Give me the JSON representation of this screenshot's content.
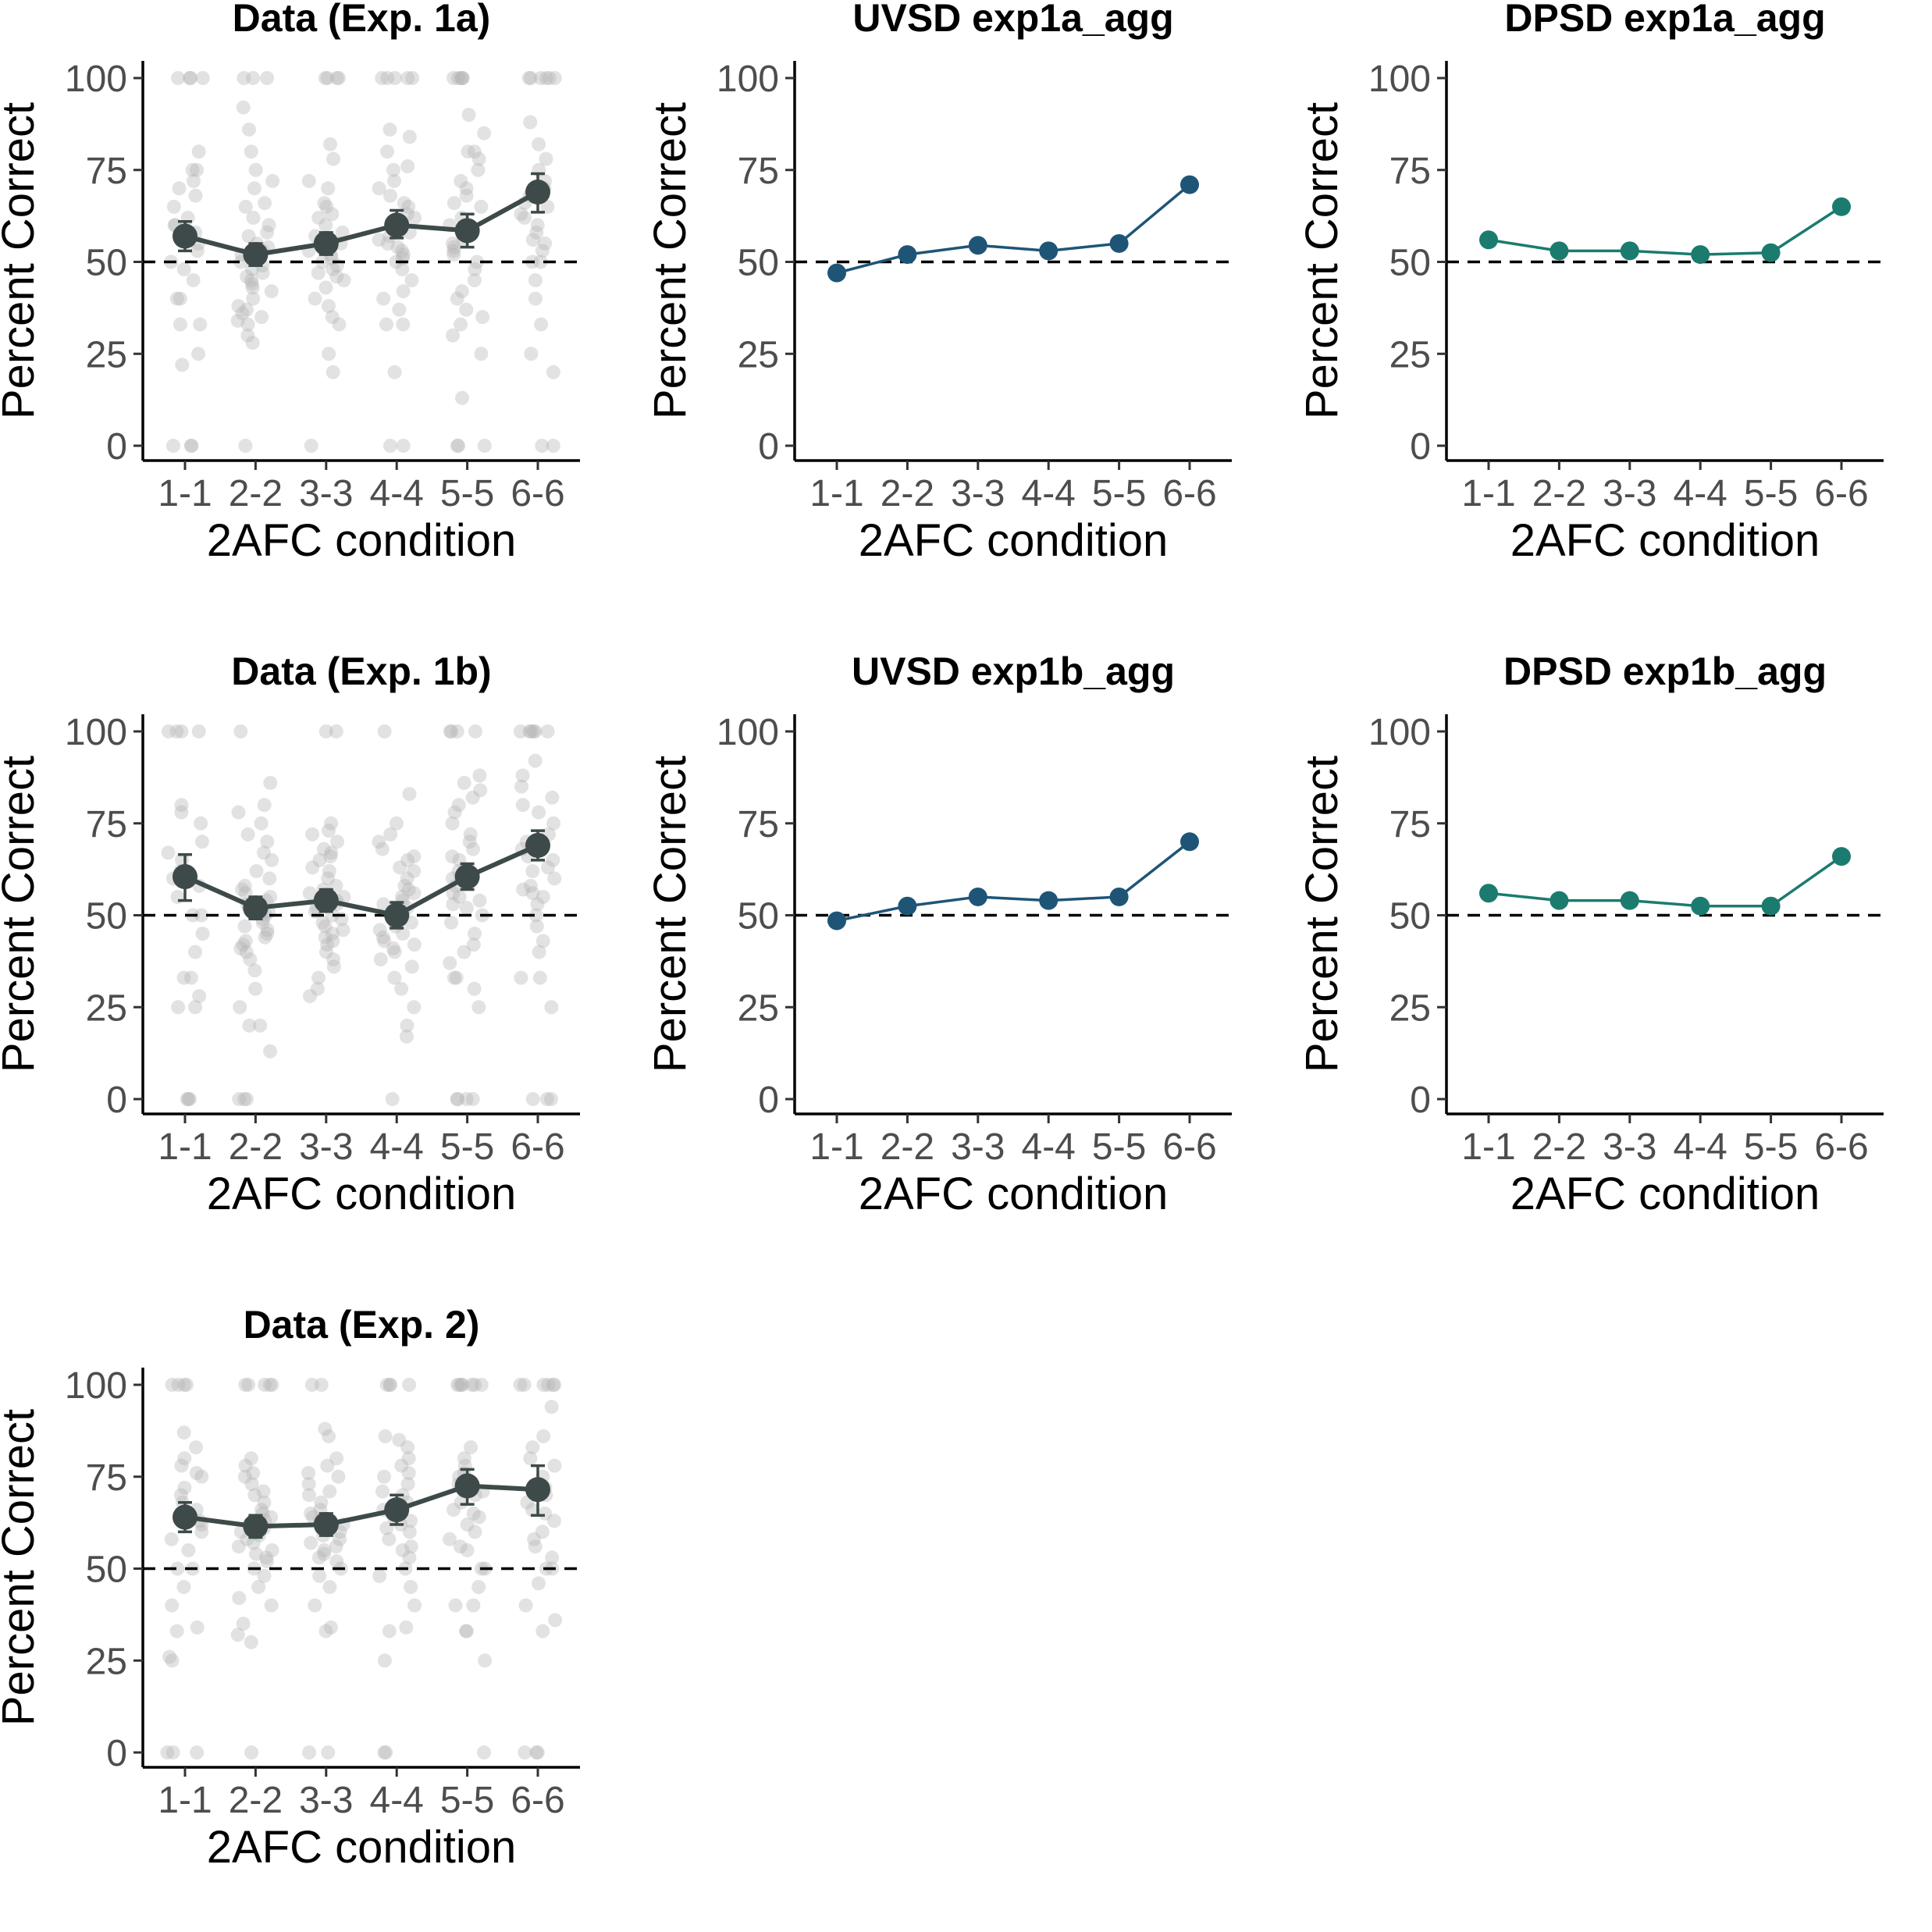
{
  "chart_data": [
    {
      "type": "scatter",
      "kind": "data",
      "title": "Data (Exp. 1a)",
      "xlabel": "2AFC condition",
      "ylabel": "Percent Correct",
      "categories": [
        "1-1",
        "2-2",
        "3-3",
        "4-4",
        "5-5",
        "6-6"
      ],
      "ylim": [
        0,
        100
      ],
      "yticks": [
        0,
        25,
        50,
        75,
        100
      ],
      "reference_line": 50,
      "grid": false,
      "color": "#3d4a49",
      "series": [
        {
          "values": [
            57,
            52,
            55,
            60,
            58.5,
            69
          ],
          "error_low": [
            53,
            49,
            52,
            56.5,
            54,
            63.5
          ],
          "error_high": [
            61,
            55,
            58,
            64,
            63,
            74
          ]
        }
      ],
      "points": [
        [
          100,
          100,
          100,
          100,
          0,
          0,
          0,
          80,
          75,
          75,
          72,
          70,
          68,
          65,
          62,
          60,
          60,
          58,
          55,
          53,
          50,
          48,
          45,
          40,
          40,
          33,
          33,
          25,
          22
        ],
        [
          100,
          100,
          100,
          92,
          86,
          80,
          75,
          72,
          70,
          66,
          65,
          62,
          60,
          58,
          57,
          55,
          54,
          53,
          52,
          51,
          50,
          49,
          48,
          47,
          46,
          45,
          44,
          43,
          42,
          40,
          38,
          37,
          36,
          35,
          34,
          33,
          30,
          28,
          0
        ],
        [
          100,
          100,
          100,
          100,
          82,
          78,
          72,
          70,
          66,
          65,
          63,
          62,
          60,
          58,
          57,
          56,
          55,
          54,
          53,
          52,
          51,
          50,
          49,
          48,
          47,
          46,
          45,
          43,
          40,
          38,
          35,
          33,
          25,
          20,
          0
        ],
        [
          100,
          100,
          100,
          100,
          100,
          86,
          84,
          80,
          76,
          75,
          72,
          70,
          68,
          66,
          65,
          63,
          62,
          60,
          58,
          57,
          56,
          55,
          54,
          53,
          52,
          51,
          50,
          48,
          45,
          42,
          40,
          37,
          33,
          33,
          20,
          0,
          0
        ],
        [
          100,
          100,
          100,
          100,
          100,
          90,
          85,
          80,
          80,
          78,
          75,
          72,
          70,
          68,
          66,
          65,
          62,
          60,
          58,
          56,
          55,
          54,
          53,
          52,
          50,
          48,
          45,
          42,
          40,
          37,
          35,
          33,
          30,
          25,
          13,
          0,
          0,
          0
        ],
        [
          100,
          100,
          100,
          100,
          100,
          100,
          88,
          82,
          78,
          75,
          72,
          70,
          68,
          66,
          65,
          63,
          62,
          60,
          58,
          56,
          55,
          53,
          50,
          50,
          45,
          40,
          33,
          25,
          20,
          0,
          0
        ]
      ]
    },
    {
      "type": "line",
      "kind": "model",
      "title": "UVSD exp1a_agg",
      "xlabel": "2AFC condition",
      "ylabel": "Percent Correct",
      "categories": [
        "1-1",
        "2-2",
        "3-3",
        "4-4",
        "5-5",
        "6-6"
      ],
      "ylim": [
        0,
        100
      ],
      "yticks": [
        0,
        25,
        50,
        75,
        100
      ],
      "reference_line": 50,
      "grid": false,
      "color": "#1e5577",
      "series": [
        {
          "values": [
            47,
            52,
            54.5,
            53,
            55,
            71
          ]
        }
      ]
    },
    {
      "type": "line",
      "kind": "model",
      "title": "DPSD exp1a_agg",
      "xlabel": "2AFC condition",
      "ylabel": "Percent Correct",
      "categories": [
        "1-1",
        "2-2",
        "3-3",
        "4-4",
        "5-5",
        "6-6"
      ],
      "ylim": [
        0,
        100
      ],
      "yticks": [
        0,
        25,
        50,
        75,
        100
      ],
      "reference_line": 50,
      "grid": false,
      "color": "#1b7b6e",
      "series": [
        {
          "values": [
            56,
            53,
            53,
            52,
            52.5,
            65
          ]
        }
      ]
    },
    {
      "type": "scatter",
      "kind": "data",
      "title": "Data (Exp. 1b)",
      "xlabel": "2AFC condition",
      "ylabel": "Percent Correct",
      "categories": [
        "1-1",
        "2-2",
        "3-3",
        "4-4",
        "5-5",
        "6-6"
      ],
      "ylim": [
        0,
        100
      ],
      "yticks": [
        0,
        25,
        50,
        75,
        100
      ],
      "reference_line": 50,
      "grid": false,
      "color": "#3d4a49",
      "series": [
        {
          "values": [
            60.5,
            52,
            54,
            50,
            60.5,
            69
          ],
          "error_low": [
            54,
            49,
            51,
            46.5,
            57,
            65
          ],
          "error_high": [
            66.5,
            55,
            57,
            53.5,
            64,
            73
          ]
        }
      ],
      "points": [
        [
          100,
          100,
          100,
          100,
          80,
          78,
          75,
          70,
          67,
          65,
          62,
          60,
          58,
          55,
          50,
          50,
          45,
          40,
          33,
          33,
          28,
          25,
          25,
          0,
          0,
          0
        ],
        [
          100,
          86,
          80,
          78,
          75,
          72,
          70,
          67,
          65,
          62,
          60,
          58,
          57,
          56,
          55,
          54,
          53,
          52,
          51,
          50,
          49,
          48,
          47,
          46,
          45,
          44,
          43,
          42,
          41,
          40,
          38,
          35,
          30,
          25,
          20,
          20,
          13,
          0,
          0,
          0
        ],
        [
          100,
          100,
          75,
          73,
          72,
          70,
          68,
          67,
          66,
          65,
          63,
          62,
          60,
          58,
          57,
          56,
          55,
          54,
          53,
          52,
          51,
          50,
          49,
          48,
          47,
          46,
          45,
          44,
          43,
          42,
          40,
          38,
          36,
          33,
          30,
          28
        ],
        [
          100,
          83,
          75,
          72,
          70,
          68,
          66,
          65,
          63,
          62,
          60,
          58,
          57,
          56,
          55,
          54,
          53,
          52,
          51,
          50,
          49,
          48,
          47,
          46,
          45,
          44,
          43,
          42,
          41,
          40,
          38,
          36,
          33,
          30,
          25,
          20,
          17,
          0
        ],
        [
          100,
          100,
          100,
          100,
          88,
          86,
          84,
          82,
          80,
          78,
          75,
          72,
          70,
          68,
          66,
          65,
          62,
          60,
          58,
          56,
          55,
          54,
          53,
          52,
          50,
          48,
          45,
          42,
          40,
          37,
          33,
          33,
          30,
          25,
          0,
          0,
          0,
          0
        ],
        [
          100,
          100,
          100,
          100,
          100,
          100,
          92,
          88,
          85,
          82,
          80,
          78,
          75,
          72,
          70,
          68,
          66,
          65,
          63,
          62,
          60,
          58,
          57,
          56,
          55,
          53,
          50,
          47,
          43,
          40,
          33,
          33,
          25,
          0,
          0,
          0
        ]
      ]
    },
    {
      "type": "line",
      "kind": "model",
      "title": "UVSD exp1b_agg",
      "xlabel": "2AFC condition",
      "ylabel": "Percent Correct",
      "categories": [
        "1-1",
        "2-2",
        "3-3",
        "4-4",
        "5-5",
        "6-6"
      ],
      "ylim": [
        0,
        100
      ],
      "yticks": [
        0,
        25,
        50,
        75,
        100
      ],
      "reference_line": 50,
      "grid": false,
      "color": "#1e5577",
      "series": [
        {
          "values": [
            48.5,
            52.5,
            55,
            54,
            55,
            70
          ]
        }
      ]
    },
    {
      "type": "line",
      "kind": "model",
      "title": "DPSD exp1b_agg",
      "xlabel": "2AFC condition",
      "ylabel": "Percent Correct",
      "categories": [
        "1-1",
        "2-2",
        "3-3",
        "4-4",
        "5-5",
        "6-6"
      ],
      "ylim": [
        0,
        100
      ],
      "yticks": [
        0,
        25,
        50,
        75,
        100
      ],
      "reference_line": 50,
      "grid": false,
      "color": "#1b7b6e",
      "series": [
        {
          "values": [
            56,
            54,
            54,
            52.5,
            52.5,
            66
          ]
        }
      ]
    },
    {
      "type": "scatter",
      "kind": "data",
      "title": "Data (Exp. 2)",
      "xlabel": "2AFC condition",
      "ylabel": "Percent Correct",
      "categories": [
        "1-1",
        "2-2",
        "3-3",
        "4-4",
        "5-5",
        "6-6"
      ],
      "ylim": [
        0,
        100
      ],
      "yticks": [
        0,
        25,
        50,
        75,
        100
      ],
      "reference_line": 50,
      "grid": false,
      "color": "#3d4a49",
      "series": [
        {
          "values": [
            64,
            61.5,
            62,
            66,
            72.5,
            71.5
          ],
          "error_low": [
            60,
            58.5,
            59,
            62,
            67.5,
            64.5
          ],
          "error_high": [
            68,
            64.5,
            65,
            70,
            77,
            78
          ]
        }
      ],
      "points": [
        [
          100,
          100,
          100,
          100,
          87,
          83,
          80,
          78,
          76,
          75,
          72,
          70,
          68,
          66,
          65,
          63,
          62,
          60,
          58,
          55,
          50,
          50,
          45,
          40,
          34,
          33,
          26,
          25,
          0,
          0,
          0
        ],
        [
          100,
          100,
          100,
          100,
          100,
          80,
          78,
          76,
          75,
          73,
          71,
          70,
          68,
          66,
          65,
          64,
          63,
          62,
          61,
          60,
          59,
          58,
          57,
          56,
          55,
          54,
          53,
          52,
          50,
          48,
          45,
          42,
          40,
          35,
          32,
          30,
          0
        ],
        [
          100,
          100,
          88,
          86,
          80,
          78,
          76,
          75,
          73,
          71,
          70,
          68,
          66,
          65,
          64,
          63,
          62,
          61,
          60,
          59,
          58,
          57,
          56,
          55,
          54,
          53,
          52,
          50,
          48,
          45,
          40,
          34,
          33,
          0,
          0
        ],
        [
          100,
          100,
          100,
          100,
          86,
          85,
          83,
          80,
          78,
          76,
          75,
          73,
          71,
          70,
          68,
          66,
          65,
          64,
          63,
          62,
          61,
          60,
          58,
          56,
          55,
          53,
          50,
          48,
          45,
          40,
          34,
          33,
          25,
          0,
          0
        ],
        [
          100,
          100,
          100,
          100,
          100,
          100,
          100,
          83,
          80,
          78,
          76,
          75,
          73,
          71,
          70,
          68,
          66,
          65,
          64,
          62,
          60,
          58,
          56,
          55,
          50,
          50,
          45,
          40,
          40,
          33,
          33,
          25,
          0
        ],
        [
          100,
          100,
          100,
          100,
          100,
          100,
          94,
          86,
          83,
          80,
          78,
          75,
          72,
          70,
          68,
          66,
          65,
          63,
          60,
          58,
          56,
          53,
          50,
          50,
          46,
          40,
          36,
          33,
          0,
          0,
          0
        ]
      ]
    }
  ]
}
